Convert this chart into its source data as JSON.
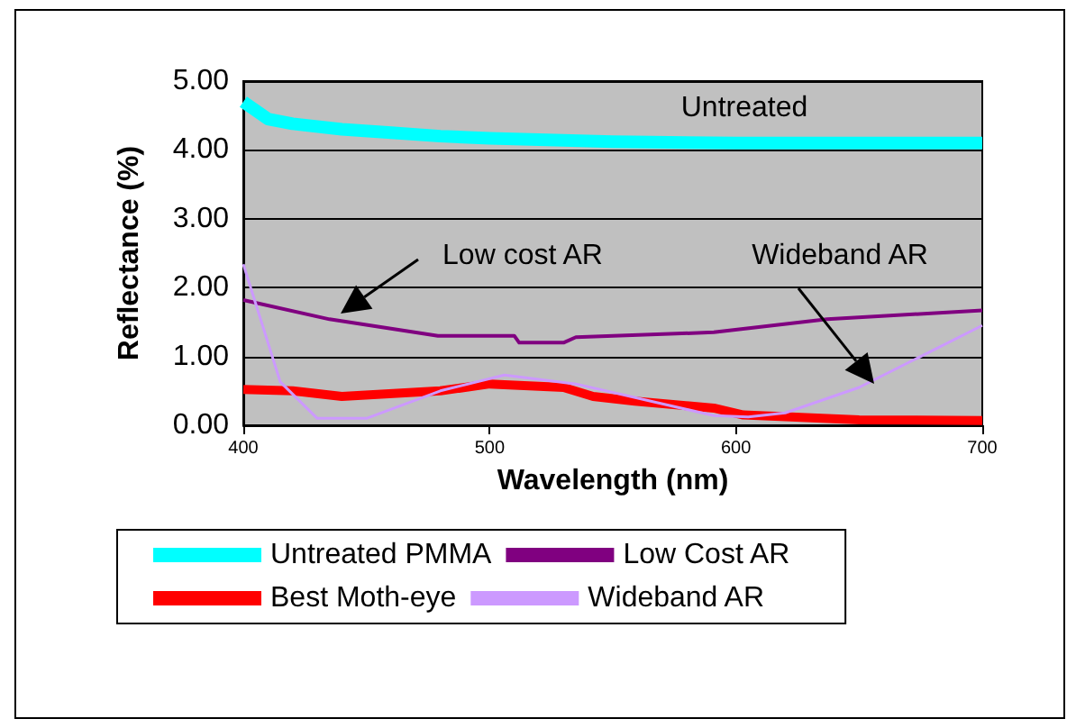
{
  "chart_data": {
    "type": "line",
    "xlabel": "Wavelength (nm)",
    "ylabel": "Reflectance (%)",
    "xlim": [
      400,
      700
    ],
    "xticks": [
      400,
      500,
      600,
      700
    ],
    "ylim": [
      0,
      5
    ],
    "yticks": [
      {
        "value": 0,
        "label": "0.00"
      },
      {
        "value": 1,
        "label": "1.00"
      },
      {
        "value": 2,
        "label": "2.00"
      },
      {
        "value": 3,
        "label": "3.00"
      },
      {
        "value": 4,
        "label": "4.00"
      },
      {
        "value": 5,
        "label": "5.00"
      }
    ],
    "grid": "y",
    "legend": "bottom",
    "marker": "none",
    "annotations": [
      "Untreated",
      "Low cost AR",
      "Wideband AR"
    ],
    "series": [
      {
        "name": "Untreated PMMA",
        "color": "#00ffff",
        "x": [
          400,
          410,
          420,
          440,
          460,
          480,
          500,
          550,
          600,
          650,
          700
        ],
        "values": [
          4.7,
          4.45,
          4.38,
          4.3,
          4.25,
          4.2,
          4.17,
          4.12,
          4.1,
          4.1,
          4.1
        ]
      },
      {
        "name": "Low Cost AR",
        "color": "#800080",
        "x": [
          400,
          435,
          479,
          510,
          512,
          530,
          535,
          591,
          637,
          700
        ],
        "values": [
          1.82,
          1.54,
          1.3,
          1.3,
          1.2,
          1.2,
          1.28,
          1.35,
          1.54,
          1.67
        ]
      },
      {
        "name": "Best Moth-eye",
        "color": "#ff0000",
        "x": [
          400,
          420,
          440,
          480,
          500,
          530,
          542,
          559,
          591,
          603,
          650,
          700
        ],
        "values": [
          0.52,
          0.5,
          0.42,
          0.5,
          0.6,
          0.55,
          0.42,
          0.35,
          0.25,
          0.15,
          0.08,
          0.07
        ]
      },
      {
        "name": "Wideband AR",
        "color": "#cc99ff",
        "x": [
          400,
          415,
          430,
          450,
          480,
          506,
          535,
          591,
          605,
          620,
          650,
          700
        ],
        "values": [
          2.34,
          0.63,
          0.1,
          0.1,
          0.5,
          0.73,
          0.6,
          0.14,
          0.12,
          0.18,
          0.55,
          1.45
        ]
      }
    ]
  }
}
